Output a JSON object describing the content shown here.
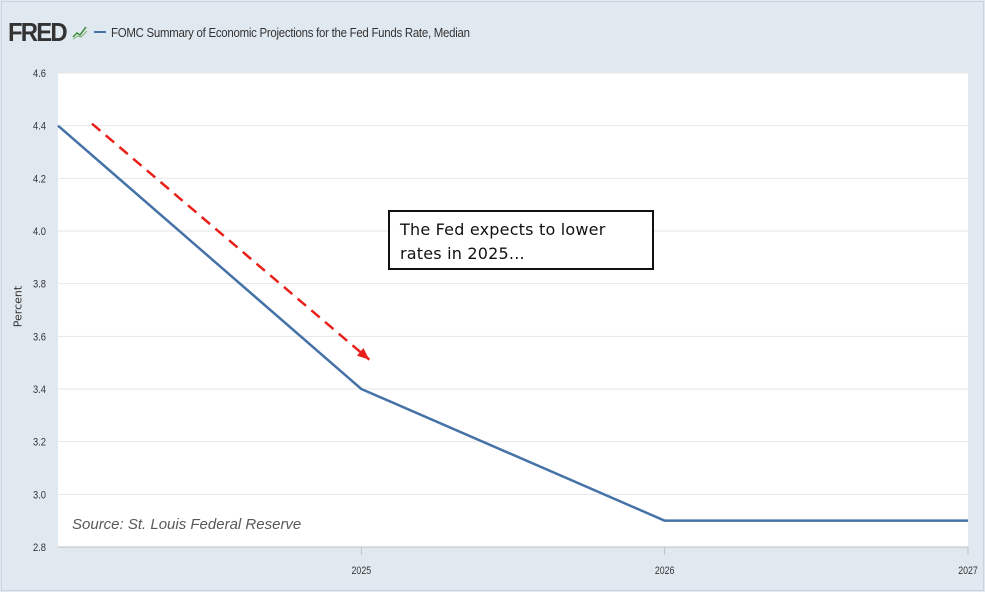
{
  "header": {
    "logo_text": "FRED",
    "series_title": "FOMC Summary of Economic Projections for the Fed Funds Rate, Median"
  },
  "annotation": {
    "text": "The Fed expects to lower rates in 2025..."
  },
  "source_note": "Source: St. Louis Federal Reserve",
  "colors": {
    "series_line": "#4572a7",
    "arrow": "#e8201a",
    "background": "#e1e9f0",
    "plot": "#ffffff"
  },
  "chart_data": {
    "type": "line",
    "title": "FOMC Summary of Economic Projections for the Fed Funds Rate, Median",
    "xlabel": "",
    "ylabel": "Percent",
    "ylim": [
      2.8,
      4.6
    ],
    "yticks": [
      "4.6",
      "4.4",
      "4.2",
      "4.0",
      "3.8",
      "3.6",
      "3.4",
      "3.2",
      "3.0",
      "2.8"
    ],
    "xticks": [
      "2025",
      "2026",
      "2027"
    ],
    "grid": true,
    "legend": "top-left",
    "series": [
      {
        "name": "FOMC Summary of Economic Projections for the Fed Funds Rate, Median",
        "x": [
          "2024",
          "2025",
          "2026",
          "2027"
        ],
        "y": [
          4.4,
          3.4,
          2.9,
          2.9
        ]
      }
    ],
    "annotations": [
      {
        "kind": "dashed-arrow",
        "from": {
          "x": "2024",
          "y": 4.4
        },
        "to": {
          "x": "2025",
          "y": 3.5
        }
      }
    ]
  }
}
